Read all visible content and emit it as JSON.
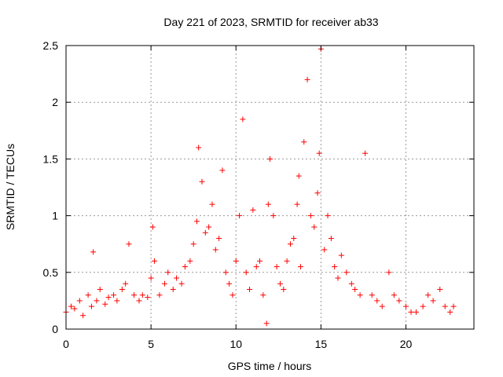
{
  "chart_data": {
    "type": "scatter",
    "title": "Day 221 of 2023, SRMTID for receiver ab33",
    "xlabel": "GPS time / hours",
    "ylabel": "SRMTID / TECUs",
    "xlim": [
      0,
      24
    ],
    "ylim": [
      0,
      2.5
    ],
    "x_ticks": [
      0,
      5,
      10,
      15,
      20
    ],
    "x_tick_labels": [
      "0",
      "5",
      "10",
      "15",
      "20"
    ],
    "y_ticks": [
      0,
      0.5,
      1,
      1.5,
      2,
      2.5
    ],
    "y_tick_labels": [
      "0",
      "0.5",
      "1",
      "1.5",
      "2",
      "2.5"
    ],
    "grid": true,
    "marker": "+",
    "series": [
      {
        "name": "SRMTID",
        "color": "#ff0000",
        "x": [
          0.0,
          0.3,
          0.5,
          0.8,
          1.0,
          1.3,
          1.5,
          1.6,
          1.8,
          2.0,
          2.3,
          2.5,
          2.8,
          3.0,
          3.3,
          3.5,
          3.7,
          4.0,
          4.3,
          4.5,
          4.8,
          5.0,
          5.1,
          5.2,
          5.5,
          5.8,
          6.0,
          6.3,
          6.5,
          6.8,
          7.0,
          7.3,
          7.5,
          7.7,
          7.8,
          8.0,
          8.2,
          8.4,
          8.6,
          8.8,
          9.0,
          9.2,
          9.4,
          9.6,
          9.8,
          10.0,
          10.2,
          10.4,
          10.6,
          10.8,
          11.0,
          11.2,
          11.4,
          11.6,
          11.8,
          11.9,
          12.0,
          12.2,
          12.4,
          12.6,
          12.8,
          13.0,
          13.2,
          13.4,
          13.6,
          13.7,
          13.8,
          14.0,
          14.2,
          14.4,
          14.6,
          14.8,
          14.9,
          15.0,
          15.2,
          15.4,
          15.6,
          15.8,
          16.0,
          16.2,
          16.5,
          16.8,
          17.0,
          17.3,
          17.6,
          18.0,
          18.3,
          18.6,
          19.0,
          19.3,
          19.6,
          20.0,
          20.3,
          20.6,
          21.0,
          21.3,
          21.6,
          22.0,
          22.3,
          22.6,
          22.8
        ],
        "y": [
          0.15,
          0.2,
          0.18,
          0.25,
          0.12,
          0.3,
          0.2,
          0.68,
          0.25,
          0.35,
          0.22,
          0.28,
          0.3,
          0.25,
          0.35,
          0.4,
          0.75,
          0.3,
          0.25,
          0.3,
          0.28,
          0.45,
          0.9,
          0.6,
          0.3,
          0.4,
          0.5,
          0.35,
          0.45,
          0.4,
          0.55,
          0.6,
          0.75,
          0.95,
          1.6,
          1.3,
          0.85,
          0.9,
          1.1,
          0.7,
          0.8,
          1.4,
          0.5,
          0.4,
          0.3,
          0.6,
          1.0,
          1.85,
          0.5,
          0.35,
          1.05,
          0.55,
          0.6,
          0.3,
          0.05,
          1.1,
          1.5,
          1.0,
          0.55,
          0.4,
          0.35,
          0.6,
          0.75,
          0.8,
          1.1,
          1.35,
          0.55,
          1.65,
          2.2,
          1.0,
          0.9,
          1.2,
          1.55,
          2.47,
          0.7,
          1.0,
          0.8,
          0.55,
          0.45,
          0.65,
          0.5,
          0.4,
          0.35,
          0.3,
          1.55,
          0.3,
          0.25,
          0.2,
          0.5,
          0.3,
          0.25,
          0.2,
          0.15,
          0.15,
          0.2,
          0.3,
          0.25,
          0.35,
          0.2,
          0.15,
          0.2
        ]
      }
    ]
  }
}
